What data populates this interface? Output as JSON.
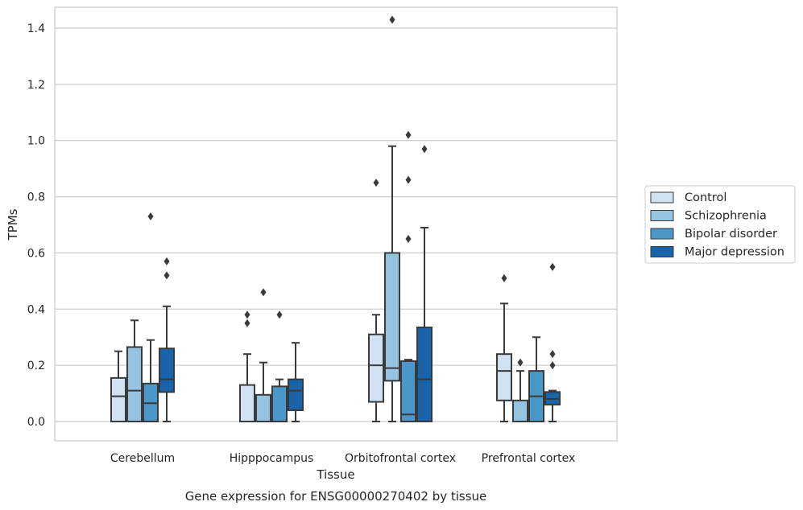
{
  "chart_data": {
    "type": "box",
    "xlabel": "Tissue",
    "ylabel": "TPMs",
    "caption": "Gene expression for ENSG00000270402 by tissue",
    "ylim": [
      -0.07,
      1.5
    ],
    "yticks": [
      0.0,
      0.2,
      0.4,
      0.6,
      0.8,
      1.0,
      1.2,
      1.4
    ],
    "ytick_labels": [
      "0.0",
      "0.2",
      "0.4",
      "0.6",
      "0.8",
      "1.0",
      "1.2",
      "1.4"
    ],
    "grid": "horizontal",
    "legend_position": "right",
    "categories": [
      "Cerebellum",
      "Hipppocampus",
      "Orbitofrontal cortex",
      "Prefrontal cortex"
    ],
    "series": [
      {
        "name": "Control",
        "color": "#d0e1f2",
        "boxes": [
          {
            "whislo": 0.0,
            "q1": 0.0,
            "med": 0.09,
            "q3": 0.155,
            "whishi": 0.25,
            "fliers": []
          },
          {
            "whislo": 0.0,
            "q1": 0.0,
            "med": 0.0,
            "q3": 0.13,
            "whishi": 0.24,
            "fliers": [
              0.35,
              0.38
            ]
          },
          {
            "whislo": 0.0,
            "q1": 0.07,
            "med": 0.2,
            "q3": 0.31,
            "whishi": 0.38,
            "fliers": [
              0.85
            ]
          },
          {
            "whislo": 0.0,
            "q1": 0.075,
            "med": 0.18,
            "q3": 0.24,
            "whishi": 0.42,
            "fliers": [
              0.51
            ]
          }
        ]
      },
      {
        "name": "Schizophrenia",
        "color": "#94c4df",
        "boxes": [
          {
            "whislo": 0.0,
            "q1": 0.0,
            "med": 0.11,
            "q3": 0.265,
            "whishi": 0.36,
            "fliers": []
          },
          {
            "whislo": 0.0,
            "q1": 0.0,
            "med": 0.0,
            "q3": 0.095,
            "whishi": 0.21,
            "fliers": [
              0.46
            ]
          },
          {
            "whislo": 0.0,
            "q1": 0.145,
            "med": 0.19,
            "q3": 0.6,
            "whishi": 0.98,
            "fliers": [
              1.43
            ]
          },
          {
            "whislo": 0.0,
            "q1": 0.0,
            "med": 0.0,
            "q3": 0.075,
            "whishi": 0.18,
            "fliers": [
              0.21
            ]
          }
        ]
      },
      {
        "name": "Bipolar disorder",
        "color": "#4a98c9",
        "boxes": [
          {
            "whislo": 0.0,
            "q1": 0.0,
            "med": 0.065,
            "q3": 0.135,
            "whishi": 0.29,
            "fliers": [
              0.73
            ]
          },
          {
            "whislo": 0.0,
            "q1": 0.0,
            "med": 0.0,
            "q3": 0.125,
            "whishi": 0.15,
            "fliers": [
              0.38
            ]
          },
          {
            "whislo": 0.0,
            "q1": 0.0,
            "med": 0.025,
            "q3": 0.215,
            "whishi": 0.22,
            "fliers": [
              0.65,
              0.86,
              1.02
            ]
          },
          {
            "whislo": 0.0,
            "q1": 0.0,
            "med": 0.09,
            "q3": 0.18,
            "whishi": 0.3,
            "fliers": []
          }
        ]
      },
      {
        "name": "Major depression",
        "color": "#1764ab",
        "boxes": [
          {
            "whislo": 0.0,
            "q1": 0.105,
            "med": 0.15,
            "q3": 0.26,
            "whishi": 0.41,
            "fliers": [
              0.52,
              0.57
            ]
          },
          {
            "whislo": 0.0,
            "q1": 0.04,
            "med": 0.11,
            "q3": 0.15,
            "whishi": 0.28,
            "fliers": []
          },
          {
            "whislo": 0.0,
            "q1": 0.0,
            "med": 0.15,
            "q3": 0.335,
            "whishi": 0.69,
            "fliers": [
              0.97
            ]
          },
          {
            "whislo": 0.0,
            "q1": 0.06,
            "med": 0.08,
            "q3": 0.105,
            "whishi": 0.11,
            "fliers": [
              0.2,
              0.24,
              0.55
            ]
          }
        ]
      }
    ]
  }
}
